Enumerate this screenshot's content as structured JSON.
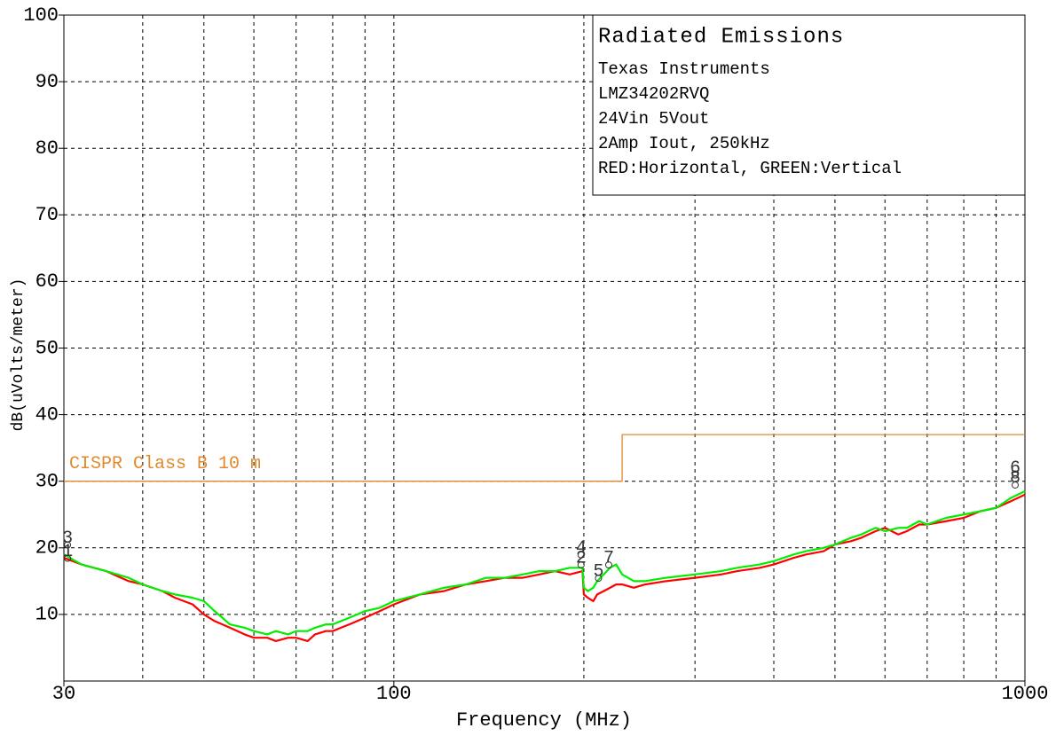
{
  "chart_data": {
    "type": "line",
    "info_title": "Radiated Emissions",
    "info_lines": [
      "Texas Instruments",
      "LMZ34202RVQ",
      "24Vin 5Vout",
      "2Amp Iout, 250kHz",
      "RED:Horizontal, GREEN:Vertical"
    ],
    "xlabel": "Frequency (MHz)",
    "ylabel": "dB(uVolts/meter)",
    "xscale": "log",
    "xlim": [
      30,
      1000
    ],
    "ylim": [
      0,
      100
    ],
    "xticks": [
      30,
      100,
      1000
    ],
    "x_minor_ticks": [
      40,
      50,
      60,
      70,
      80,
      90,
      200,
      300,
      400,
      500,
      600,
      700,
      800,
      900
    ],
    "yticks": [
      10,
      20,
      30,
      40,
      50,
      60,
      70,
      80,
      90,
      100
    ],
    "grid": true,
    "limit": {
      "name": "CISPR Class B 10 m",
      "color": "#e08a2c",
      "x": [
        30,
        230,
        230,
        1000
      ],
      "values": [
        30,
        30,
        37,
        37
      ]
    },
    "series": [
      {
        "name": "Horizontal",
        "color": "#ff0000",
        "x": [
          30,
          32,
          35,
          38,
          40,
          43,
          45,
          48,
          50,
          52,
          55,
          58,
          60,
          63,
          65,
          68,
          70,
          73,
          75,
          78,
          80,
          85,
          90,
          95,
          100,
          110,
          120,
          130,
          140,
          150,
          160,
          170,
          180,
          190,
          199,
          200,
          203,
          207,
          210,
          215,
          220,
          225,
          230,
          240,
          250,
          270,
          300,
          330,
          350,
          380,
          400,
          430,
          450,
          480,
          500,
          530,
          550,
          580,
          600,
          630,
          650,
          680,
          700,
          750,
          800,
          850,
          900,
          950,
          1000
        ],
        "values": [
          18.5,
          17.5,
          16.5,
          15,
          14.5,
          13.5,
          12.5,
          11.5,
          10,
          9,
          8,
          7,
          6.5,
          6.5,
          6,
          6.5,
          6.5,
          6,
          7,
          7.5,
          7.5,
          8.5,
          9.5,
          10.5,
          11.5,
          13,
          13.5,
          14.5,
          15,
          15.5,
          15.5,
          16,
          16.5,
          16,
          16.5,
          13,
          12.5,
          12,
          13,
          13.5,
          14,
          14.5,
          14.5,
          14,
          14.5,
          15,
          15.5,
          16,
          16.5,
          17,
          17.5,
          18.5,
          19,
          19.5,
          20.5,
          21,
          21.5,
          22.5,
          23,
          22,
          22.5,
          23.5,
          23.5,
          24,
          24.5,
          25.5,
          26,
          27,
          28
        ]
      },
      {
        "name": "Vertical",
        "color": "#00ee00",
        "x": [
          30,
          32,
          35,
          38,
          40,
          43,
          45,
          48,
          50,
          52,
          55,
          58,
          60,
          63,
          65,
          68,
          70,
          73,
          75,
          78,
          80,
          85,
          90,
          95,
          100,
          110,
          120,
          130,
          140,
          150,
          160,
          170,
          180,
          190,
          199,
          200,
          203,
          207,
          210,
          215,
          220,
          225,
          230,
          240,
          250,
          270,
          300,
          330,
          350,
          380,
          400,
          430,
          450,
          480,
          500,
          530,
          550,
          580,
          600,
          630,
          650,
          680,
          700,
          750,
          800,
          850,
          900,
          950,
          1000
        ],
        "values": [
          19,
          17.5,
          16.5,
          15.5,
          14.5,
          13.5,
          13,
          12.5,
          12,
          10.5,
          8.5,
          8,
          7.5,
          7,
          7.5,
          7,
          7.5,
          7.5,
          8,
          8.5,
          8.5,
          9.5,
          10.5,
          11,
          12,
          13,
          14,
          14.5,
          15.5,
          15.5,
          16,
          16.5,
          16.5,
          17,
          17,
          14,
          13.5,
          14,
          15,
          16,
          17,
          17.5,
          16,
          15,
          15,
          15.5,
          16,
          16.5,
          17,
          17.5,
          18,
          19,
          19.5,
          20,
          20.5,
          21.5,
          22,
          23,
          22.5,
          23,
          23,
          24,
          23.5,
          24.5,
          25,
          25.5,
          26,
          27.5,
          28.5
        ]
      }
    ],
    "markers": [
      {
        "label": "3",
        "x": 30.4,
        "y": 21.5
      },
      {
        "label": "1",
        "x": 30.4,
        "y": 19.5
      },
      {
        "label": "4",
        "x": 198,
        "y": 20
      },
      {
        "label": "2",
        "x": 198,
        "y": 18.5
      },
      {
        "label": "5",
        "x": 211,
        "y": 16.5
      },
      {
        "label": "7",
        "x": 219,
        "y": 18.5
      },
      {
        "label": "6",
        "x": 965,
        "y": 32
      },
      {
        "label": "8",
        "x": 965,
        "y": 30.5
      }
    ]
  }
}
